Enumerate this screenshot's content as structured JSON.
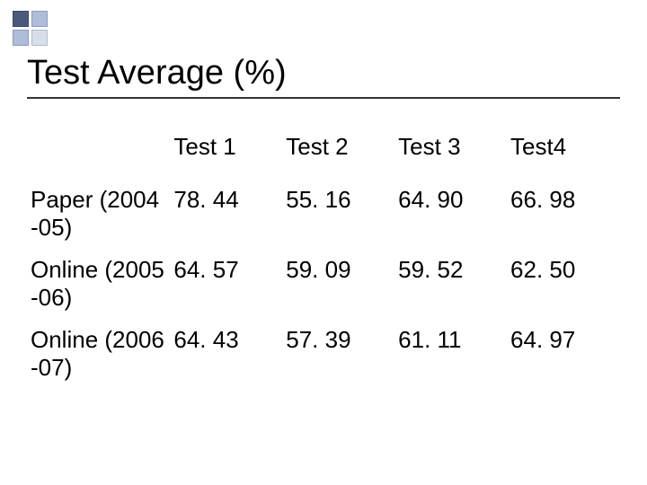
{
  "title": "Test Average (%)",
  "table": {
    "columns": [
      "Test 1",
      "Test 2",
      "Test 3",
      "Test4"
    ],
    "rows": [
      {
        "label": "Paper (2004 -05)",
        "values": [
          "78. 44",
          "55. 16",
          "64. 90",
          "66. 98"
        ]
      },
      {
        "label": "Online (2005 -06)",
        "values": [
          "64. 57",
          "59. 09",
          "59. 52",
          "62. 50"
        ]
      },
      {
        "label": "Online (2006 -07)",
        "values": [
          "64. 43",
          "57. 39",
          "61. 11",
          "64. 97"
        ]
      }
    ]
  },
  "styling": {
    "background_color": "#ffffff",
    "title_fontsize": 38,
    "title_color": "#000000",
    "table_fontsize": 26,
    "table_text_color": "#000000",
    "border_color": "#333333",
    "decoration_colors": [
      "#4a5a7a",
      "#b0bdd8",
      "#b0bdd8",
      "#d8dee8"
    ],
    "font_family": "Arial"
  }
}
